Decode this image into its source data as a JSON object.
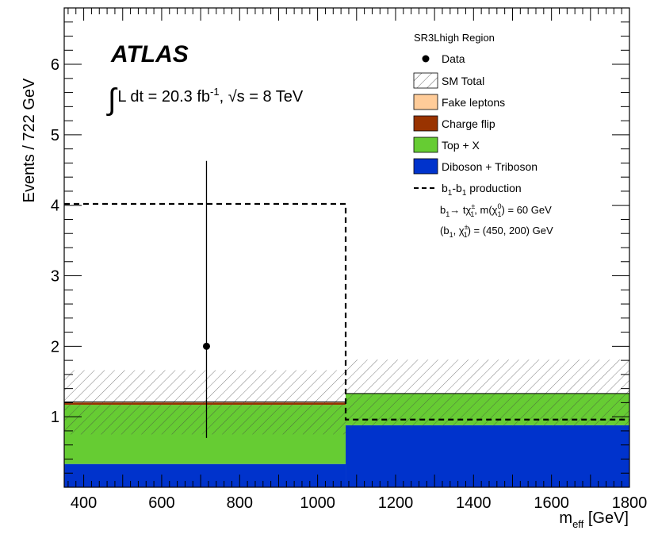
{
  "chart_data": {
    "type": "bar",
    "ylabel": "Events / 722 GeV",
    "xlabel_main": "m",
    "xlabel_sub": "eff",
    "xlabel_unit": " [GeV]",
    "xlim": [
      350,
      1800
    ],
    "ylim": [
      0,
      6.8
    ],
    "x_ticks": [
      400,
      600,
      800,
      1000,
      1200,
      1400,
      1600,
      1800
    ],
    "y_ticks": [
      1,
      2,
      3,
      4,
      5,
      6
    ],
    "bin_edges": [
      350,
      1072,
      1800
    ],
    "stack": [
      {
        "name": "Diboson + Triboson",
        "color": "#0033cc",
        "values": [
          0.33,
          0.88
        ]
      },
      {
        "name": "Top + X",
        "color": "#66cc33",
        "values": [
          0.84,
          0.45
        ]
      },
      {
        "name": "Charge flip",
        "color": "#993300",
        "values": [
          0.03,
          0.0
        ]
      },
      {
        "name": "Fake leptons",
        "color": "#ffcc99",
        "values": [
          0.01,
          0.0
        ]
      }
    ],
    "sm_total": {
      "name": "SM Total",
      "values": [
        1.21,
        1.33
      ],
      "unc_low": [
        0.75,
        0.85
      ],
      "unc_high": [
        1.66,
        1.81
      ]
    },
    "signal": {
      "values": [
        4.02,
        0.96
      ]
    },
    "data": {
      "name": "Data",
      "x": [
        715
      ],
      "y": [
        2
      ],
      "err_low": [
        0.7
      ],
      "err_high": [
        4.63
      ]
    },
    "region_label": "SR3Lhigh Region",
    "experiment_label": "ATLAS",
    "lumi_text": {
      "integral": "∫",
      "l_dt": "L dt = 20.3 fb",
      "fb_exp": "-1",
      "sep": ", ",
      "sqrt": "√s",
      "energy": " = 8 TeV"
    },
    "legend": {
      "data": "Data",
      "sm_total": "SM Total",
      "fake": "Fake leptons",
      "charge_flip": "Charge flip",
      "top_x": "Top + X",
      "diboson": "Diboson + Triboson",
      "signal_line1_a": "b",
      "signal_line1_sub1": "1",
      "signal_line1_dash": "-",
      "signal_line1_b": "b",
      "signal_line1_sub2": "1",
      "signal_line1_rest": " production",
      "signal_line2_a": "b",
      "signal_line2_sub": "1",
      "signal_line2_arrow": "→ tχ",
      "signal_line2_chi_sup": "±",
      "signal_line2_chi_sub": "1",
      "signal_line2_mass": ", m(χ",
      "signal_line2_mass_sup": "0",
      "signal_line2_mass_sub": "1",
      "signal_line2_end": ") = 60 GeV",
      "signal_line3_open": "(b",
      "signal_line3_sub": "1",
      "signal_line3_chi": ", χ",
      "signal_line3_chi_sup": "±",
      "signal_line3_chi_sub": "1",
      "signal_line3_end": ") = (450, 200) GeV"
    }
  }
}
